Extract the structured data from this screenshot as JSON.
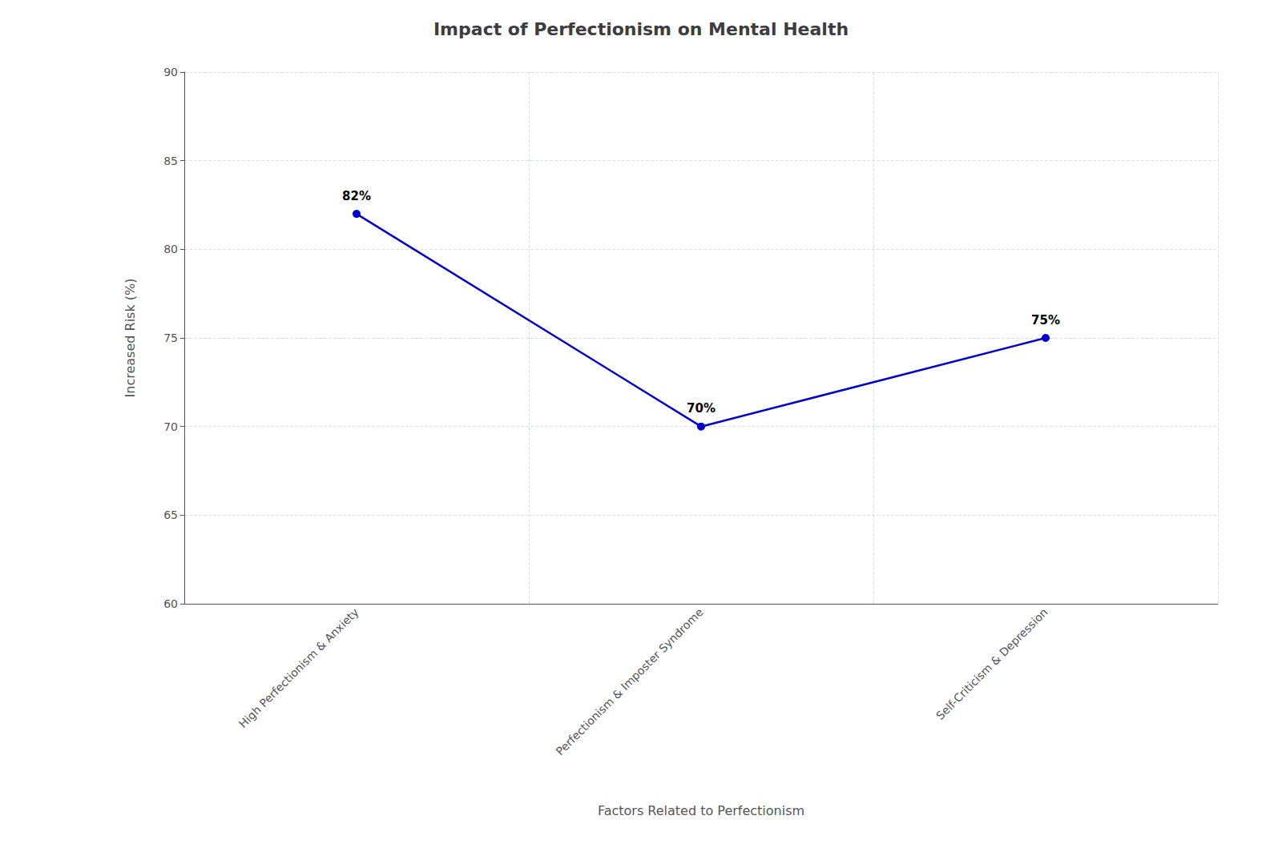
{
  "chart_data": {
    "type": "line",
    "title": "Impact of Perfectionism on Mental Health",
    "xlabel": "Factors Related to Perfectionism",
    "ylabel": "Increased Risk (%)",
    "categories": [
      "High Perfectionism & Anxiety",
      "Perfectionism & Imposter Syndrome",
      "Self-Criticism & Depression"
    ],
    "values": [
      82,
      70,
      75
    ],
    "value_labels": [
      "82%",
      "70%",
      "75%"
    ],
    "data_labels": true,
    "color": "#0000CC",
    "marker": "circle",
    "ylim": [
      60,
      90
    ],
    "yticks": [
      60,
      65,
      70,
      75,
      80,
      85,
      90
    ],
    "grid": true
  }
}
